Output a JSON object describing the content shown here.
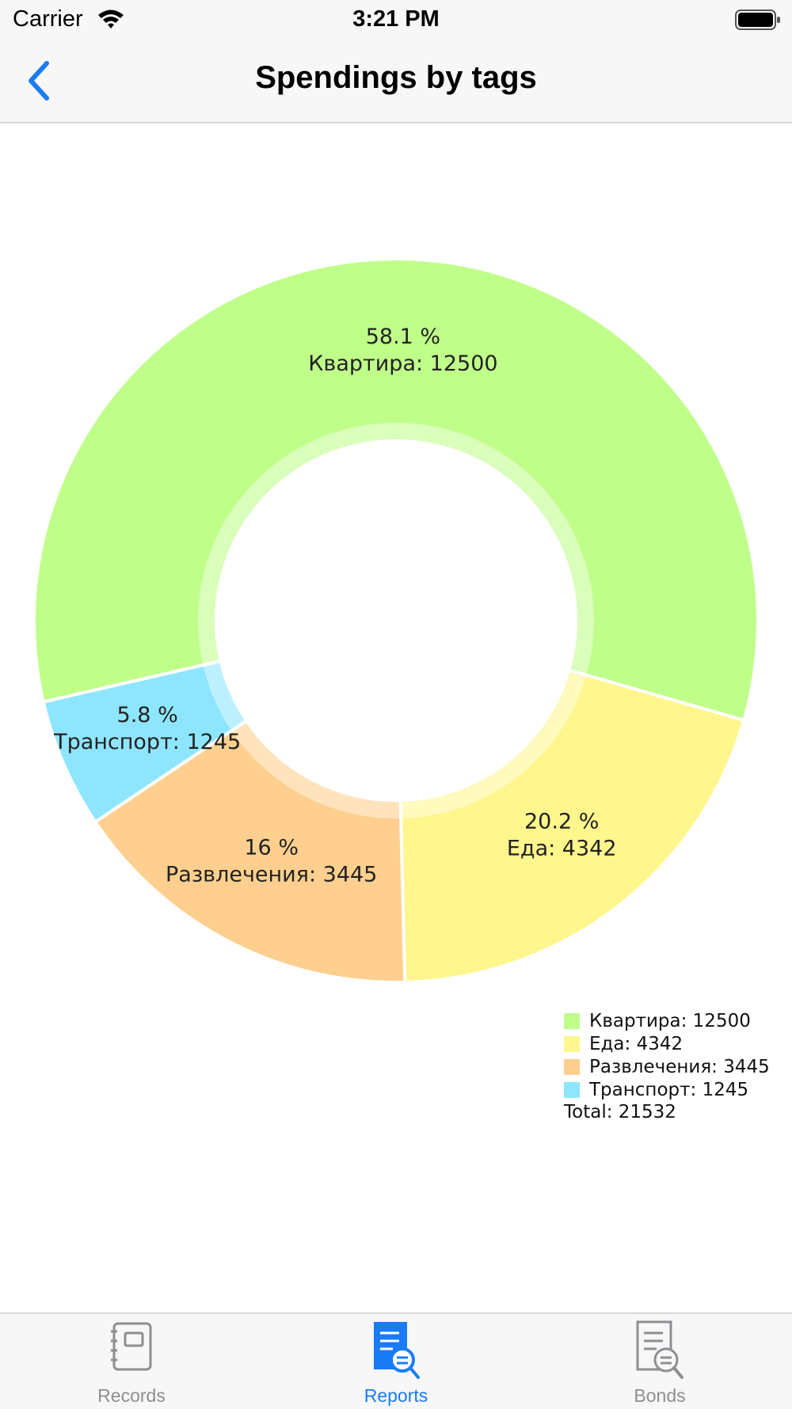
{
  "status_bar": {
    "carrier": "Carrier",
    "time": "3:21 PM"
  },
  "nav": {
    "title": "Spendings by tags",
    "back_icon": "chevron-left-icon"
  },
  "colors": {
    "accent": "#1a7cf5",
    "tab_inactive": "#8e8e93"
  },
  "chart_data": {
    "type": "pie",
    "style": "donut",
    "slices": [
      {
        "label": "Квартира",
        "value": 12500,
        "percent": "58.1 %",
        "color": "#c0fe8a"
      },
      {
        "label": "Еда",
        "value": 4342,
        "percent": "20.2 %",
        "color": "#fff68e"
      },
      {
        "label": "Развлечения",
        "value": 3445,
        "percent": "16 %",
        "color": "#fecf8e"
      },
      {
        "label": "Транспорт",
        "value": 1245,
        "percent": "5.8 %",
        "color": "#8ee6fe"
      }
    ],
    "slice_labels": [
      {
        "pct": "58.1 %",
        "text": "Квартира: 12500"
      },
      {
        "pct": "20.2 %",
        "text": "Еда: 4342"
      },
      {
        "pct": "16 %",
        "text": "Развлечения: 3445"
      },
      {
        "pct": "5.8 %",
        "text": "Транспорт: 1245"
      }
    ],
    "legend": {
      "position": "bottom-right",
      "items": [
        "Квартира: 12500",
        "Еда: 4342",
        "Развлечения: 3445",
        "Транспорт: 1245"
      ],
      "total": "Total: 21532"
    }
  },
  "tabs": [
    {
      "label": "Records",
      "icon": "notebook-icon",
      "active": false
    },
    {
      "label": "Reports",
      "icon": "report-search-icon",
      "active": true
    },
    {
      "label": "Bonds",
      "icon": "document-search-icon",
      "active": false
    }
  ]
}
